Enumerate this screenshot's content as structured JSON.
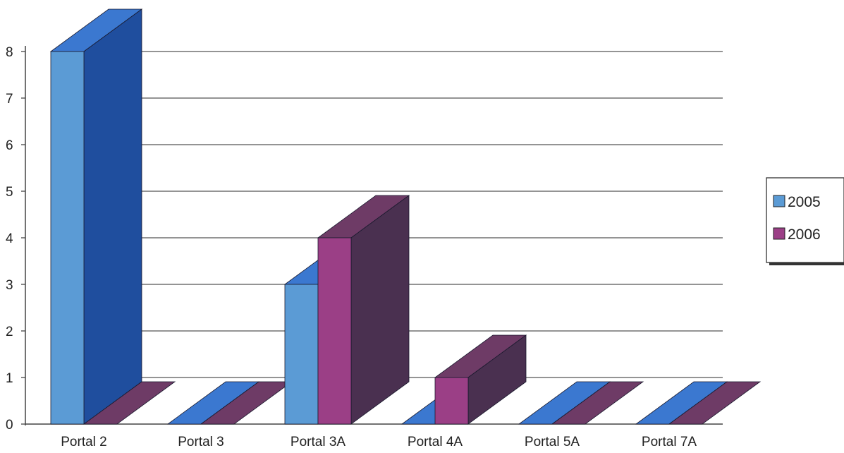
{
  "chart_data": {
    "type": "bar",
    "title": "",
    "xlabel": "",
    "ylabel": "",
    "categories": [
      "Portal 2",
      "Portal 3",
      "Portal 3A",
      "Portal 4A",
      "Portal 5A",
      "Portal 7A"
    ],
    "series": [
      {
        "name": "2005",
        "values": [
          8,
          0,
          3,
          0,
          0,
          0
        ],
        "color": "#5b9bd5",
        "color_side": "#1f4e9e",
        "color_top": "#3b78d0"
      },
      {
        "name": "2006",
        "values": [
          0,
          0,
          4,
          1,
          0,
          0
        ],
        "color": "#9b3f86",
        "color_side": "#4a3050",
        "color_top": "#6e3b66"
      }
    ],
    "y_ticks": [
      "0",
      "1",
      "2",
      "3",
      "4",
      "5",
      "6",
      "7",
      "8"
    ],
    "ylim": [
      0,
      8
    ],
    "grid": true,
    "style": "3d-clustered-column",
    "legend": {
      "placement": "right",
      "entries": [
        "2005",
        "2006"
      ]
    }
  }
}
